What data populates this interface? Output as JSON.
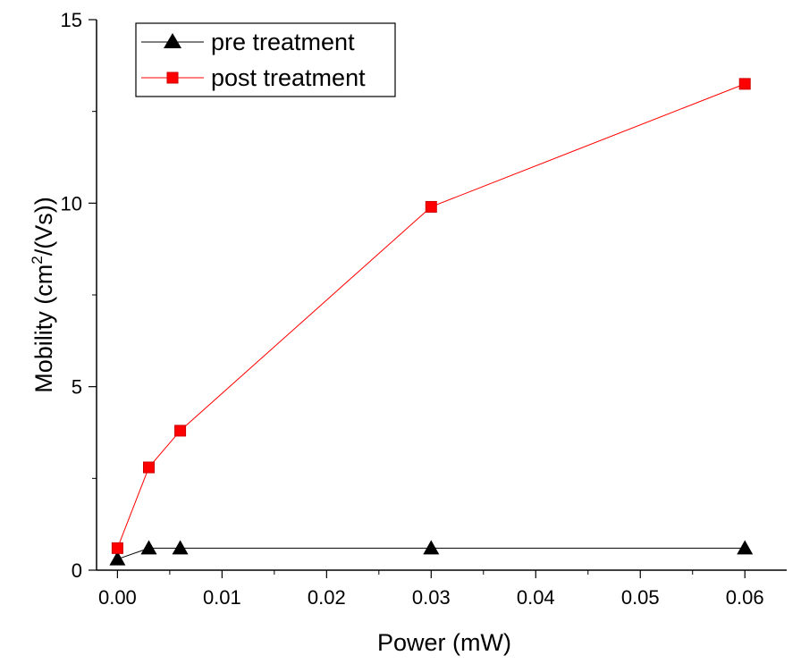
{
  "chart_data": {
    "type": "line",
    "xlabel": "Power (mW)",
    "ylabel_main": "Mobility (cm",
    "ylabel_sup": "2",
    "ylabel_tail": "/(Vs))",
    "xlim": [
      -0.002,
      0.064
    ],
    "ylim": [
      0,
      15
    ],
    "xticks": [
      0.0,
      0.01,
      0.02,
      0.03,
      0.04,
      0.05,
      0.06
    ],
    "xtick_labels": [
      "0.00",
      "0.01",
      "0.02",
      "0.03",
      "0.04",
      "0.05",
      "0.06"
    ],
    "yticks": [
      0,
      5,
      10,
      15
    ],
    "ytick_labels": [
      "0",
      "5",
      "10",
      "15"
    ],
    "grid": false,
    "legend_position": "top-left",
    "series": [
      {
        "name": "pre treatment",
        "color": "#000000",
        "marker": "triangle",
        "x": [
          0.0,
          0.003,
          0.006,
          0.03,
          0.06
        ],
        "y": [
          0.3,
          0.6,
          0.6,
          0.6,
          0.6
        ]
      },
      {
        "name": "post treatment",
        "color": "#ff0000",
        "marker": "square",
        "x": [
          0.0,
          0.003,
          0.006,
          0.03,
          0.06
        ],
        "y": [
          0.6,
          2.8,
          3.8,
          9.9,
          13.25
        ]
      }
    ]
  }
}
